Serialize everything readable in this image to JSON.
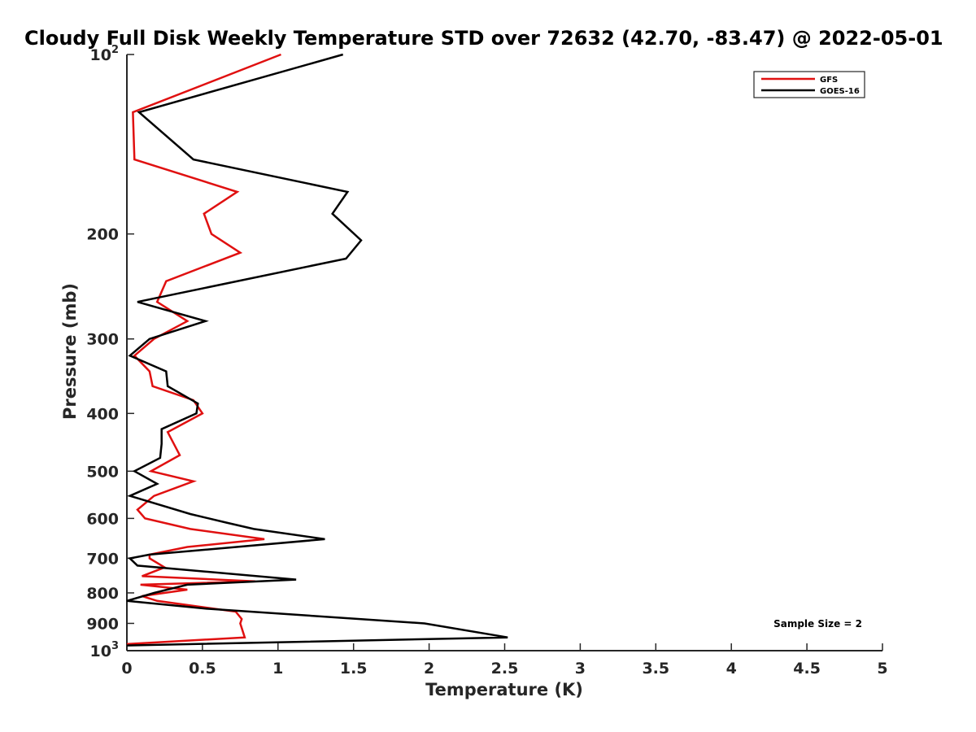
{
  "chart_data": {
    "type": "line",
    "title": "Cloudy Full Disk Weekly Temperature STD over 72632 (42.70, -83.47) @ 2022-05-01",
    "xlabel": "Temperature (K)",
    "ylabel": "Pressure (mb)",
    "xlim": [
      0,
      5
    ],
    "ylim": [
      100,
      1000
    ],
    "yscale": "log",
    "y_reversed": true,
    "x_ticks": [
      {
        "value": 0,
        "label": "0"
      },
      {
        "value": 0.5,
        "label": "0.5"
      },
      {
        "value": 1,
        "label": "1"
      },
      {
        "value": 1.5,
        "label": "1.5"
      },
      {
        "value": 2,
        "label": "2"
      },
      {
        "value": 2.5,
        "label": "2.5"
      },
      {
        "value": 3,
        "label": "3"
      },
      {
        "value": 3.5,
        "label": "3.5"
      },
      {
        "value": 4,
        "label": "4"
      },
      {
        "value": 4.5,
        "label": "4.5"
      },
      {
        "value": 5,
        "label": "5"
      }
    ],
    "y_ticks": [
      {
        "value": 100,
        "label": "10",
        "sup": "2"
      },
      {
        "value": 200,
        "label": "200",
        "sup": ""
      },
      {
        "value": 300,
        "label": "300",
        "sup": ""
      },
      {
        "value": 400,
        "label": "400",
        "sup": ""
      },
      {
        "value": 500,
        "label": "500",
        "sup": ""
      },
      {
        "value": 600,
        "label": "600",
        "sup": ""
      },
      {
        "value": 700,
        "label": "700",
        "sup": ""
      },
      {
        "value": 800,
        "label": "800",
        "sup": ""
      },
      {
        "value": 900,
        "label": "900",
        "sup": ""
      },
      {
        "value": 1000,
        "label": "10",
        "sup": "3"
      }
    ],
    "legend": {
      "placement": "top-right"
    },
    "annotation": "Sample Size = 2",
    "series": [
      {
        "name": "GFS",
        "color": "#e01010",
        "points": [
          [
            1.02,
            100
          ],
          [
            0.04,
            125
          ],
          [
            0.05,
            150
          ],
          [
            0.73,
            170
          ],
          [
            0.51,
            185
          ],
          [
            0.56,
            200
          ],
          [
            0.75,
            215
          ],
          [
            0.26,
            240
          ],
          [
            0.2,
            260
          ],
          [
            0.4,
            280
          ],
          [
            0.18,
            300
          ],
          [
            0.05,
            320
          ],
          [
            0.15,
            340
          ],
          [
            0.17,
            360
          ],
          [
            0.44,
            380
          ],
          [
            0.5,
            400
          ],
          [
            0.27,
            430
          ],
          [
            0.35,
            470
          ],
          [
            0.16,
            500
          ],
          [
            0.44,
            520
          ],
          [
            0.18,
            550
          ],
          [
            0.07,
            580
          ],
          [
            0.12,
            600
          ],
          [
            0.42,
            625
          ],
          [
            0.91,
            650
          ],
          [
            0.4,
            670
          ],
          [
            0.15,
            690
          ],
          [
            0.15,
            700
          ],
          [
            0.25,
            725
          ],
          [
            0.1,
            750
          ],
          [
            0.85,
            765
          ],
          [
            0.09,
            775
          ],
          [
            0.4,
            790
          ],
          [
            0.1,
            810
          ],
          [
            0.2,
            825
          ],
          [
            0.72,
            860
          ],
          [
            0.76,
            885
          ],
          [
            0.75,
            900
          ],
          [
            0.78,
            950
          ],
          [
            0.0,
            975
          ]
        ]
      },
      {
        "name": "GOES-16",
        "color": "#000000",
        "points": [
          [
            1.43,
            100
          ],
          [
            0.08,
            125
          ],
          [
            0.44,
            150
          ],
          [
            1.46,
            170
          ],
          [
            1.36,
            185
          ],
          [
            1.55,
            205
          ],
          [
            1.45,
            220
          ],
          [
            0.07,
            260
          ],
          [
            0.52,
            280
          ],
          [
            0.15,
            300
          ],
          [
            0.02,
            320
          ],
          [
            0.26,
            340
          ],
          [
            0.27,
            360
          ],
          [
            0.47,
            385
          ],
          [
            0.46,
            400
          ],
          [
            0.23,
            425
          ],
          [
            0.23,
            450
          ],
          [
            0.22,
            475
          ],
          [
            0.05,
            500
          ],
          [
            0.2,
            525
          ],
          [
            0.02,
            550
          ],
          [
            0.42,
            590
          ],
          [
            0.66,
            610
          ],
          [
            0.84,
            625
          ],
          [
            1.31,
            650
          ],
          [
            0.15,
            690
          ],
          [
            0.02,
            700
          ],
          [
            0.07,
            720
          ],
          [
            1.12,
            760
          ],
          [
            0.4,
            775
          ],
          [
            0.18,
            800
          ],
          [
            0.0,
            825
          ],
          [
            0.52,
            850
          ],
          [
            1.97,
            900
          ],
          [
            2.52,
            950
          ],
          [
            0.0,
            980
          ]
        ]
      }
    ]
  }
}
